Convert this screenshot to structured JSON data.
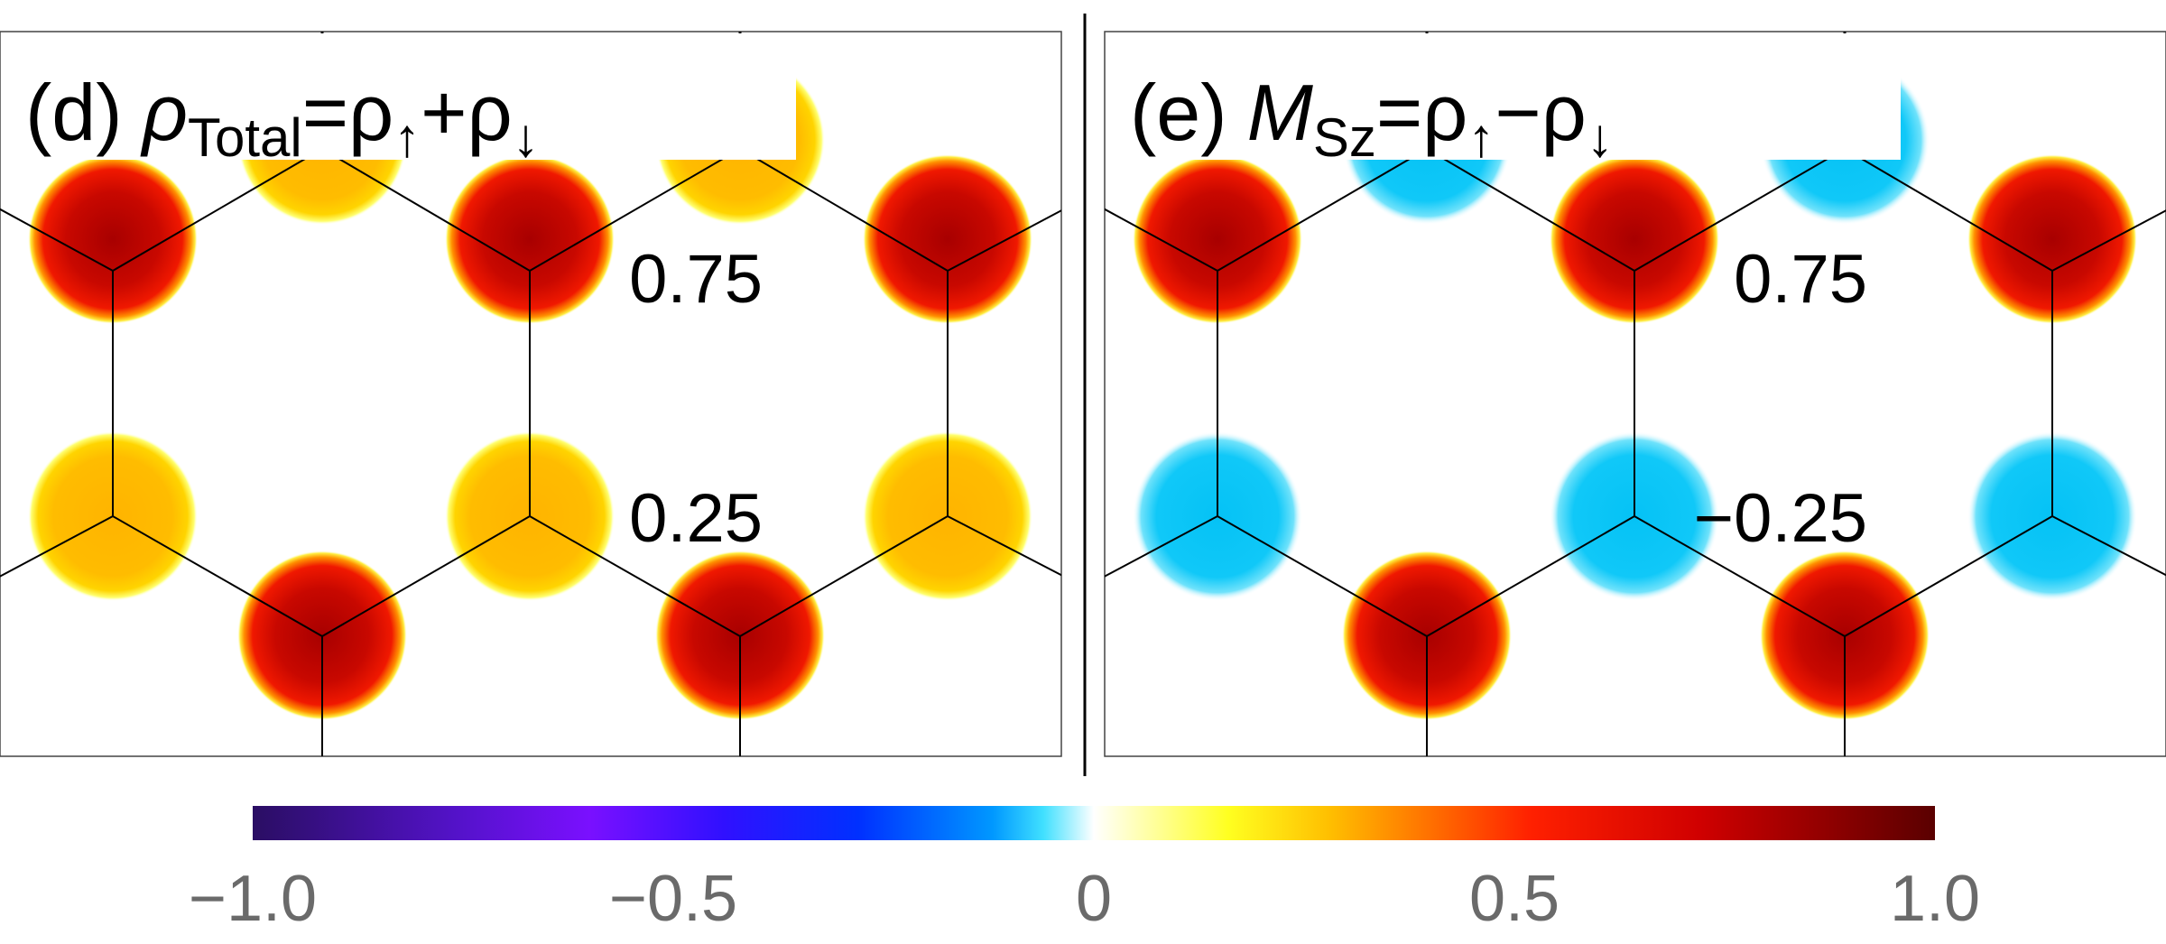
{
  "colorbar": {
    "ticks": [
      "−1.0",
      "−0.5",
      "0",
      "0.5",
      "1.0"
    ],
    "tick_values": [
      -1.0,
      -0.5,
      0,
      0.5,
      1.0
    ],
    "colors": [
      "#2a0e63",
      "#7a10ff",
      "#0020ff",
      "#00bfff",
      "#ffffff",
      "#ffff30",
      "#ffb000",
      "#ff2000",
      "#c00000",
      "#5a0000"
    ]
  },
  "panels": [
    {
      "label": "(d)",
      "formula_main": "ρ",
      "formula_sub": "Total",
      "formula_rest": "=ρ",
      "formula_up": "↑",
      "formula_plus": "+ρ",
      "formula_down": "↓",
      "value_a": "0.75",
      "value_b": "0.25",
      "color_a": "#d81400",
      "color_b": "#ffbf00",
      "site_value_a": 0.75,
      "site_value_b": 0.25
    },
    {
      "label": "(e)",
      "formula_main": "M",
      "formula_sub": "Sz",
      "formula_rest": "=ρ",
      "formula_up": "↑",
      "formula_plus": "−ρ",
      "formula_down": "↓",
      "value_a": "0.75",
      "value_b": "−0.25",
      "color_a": "#d81400",
      "color_b": "#12c6f5",
      "site_value_a": 0.75,
      "site_value_b": -0.25
    }
  ]
}
